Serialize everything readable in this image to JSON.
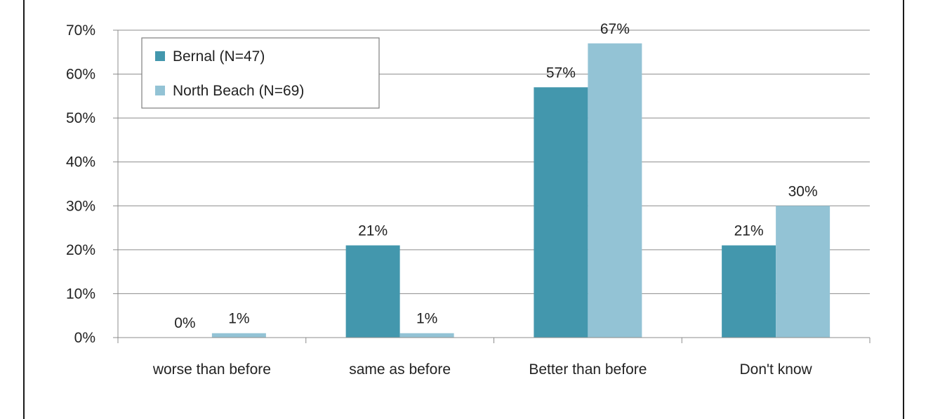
{
  "chart_data": {
    "type": "bar",
    "categories": [
      "worse than before",
      "same as before",
      "Better than before",
      "Don't know"
    ],
    "series": [
      {
        "name": "Bernal (N=47)",
        "color": "#4397ad",
        "values": [
          0,
          21,
          57,
          21
        ],
        "labels": [
          "0%",
          "21%",
          "57%",
          "21%"
        ]
      },
      {
        "name": "North Beach (N=69)",
        "color": "#93c3d5",
        "values": [
          1,
          1,
          67,
          30
        ],
        "labels": [
          "1%",
          "1%",
          "67%",
          "30%"
        ]
      }
    ],
    "yticks": [
      "0%",
      "10%",
      "20%",
      "30%",
      "40%",
      "50%",
      "60%",
      "70%"
    ],
    "ylim": [
      0,
      70
    ],
    "grid": true,
    "legend": "top-left"
  }
}
